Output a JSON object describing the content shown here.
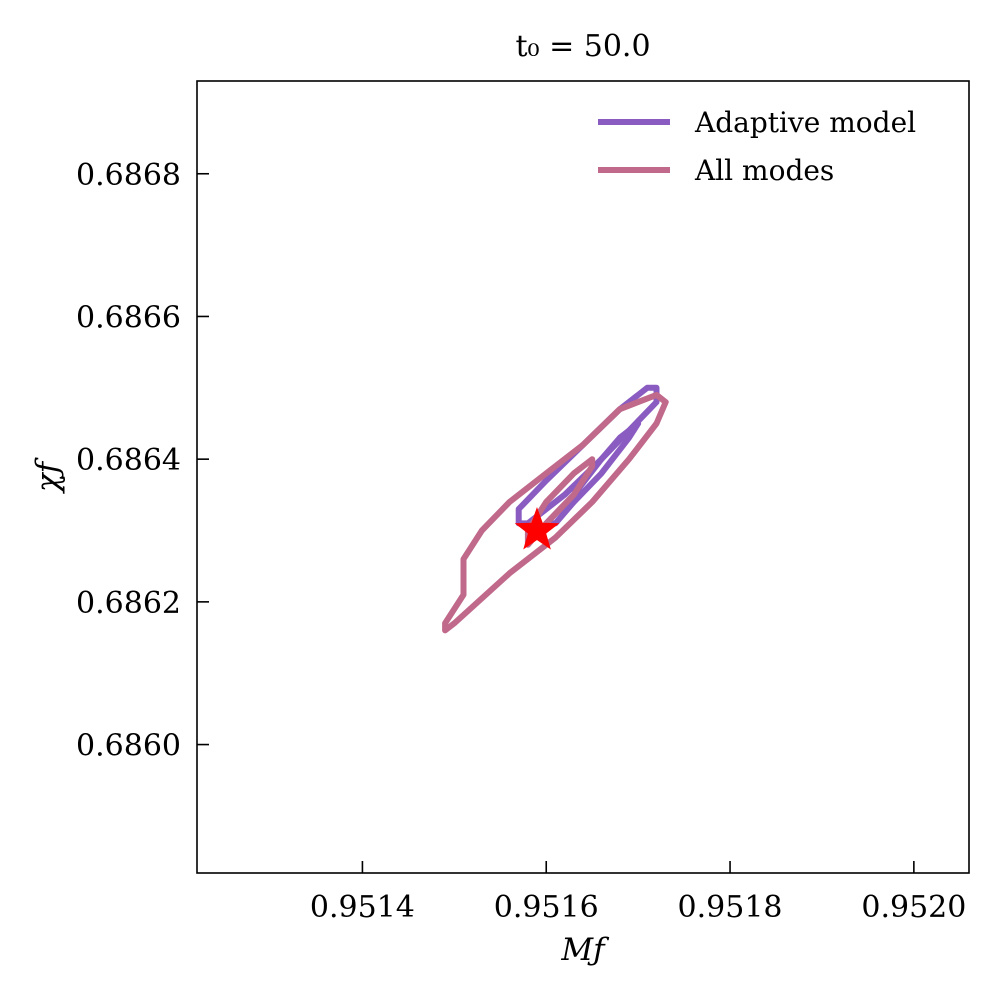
{
  "chart_data": {
    "type": "line",
    "title": "t₀ = 50.0",
    "xlabel": "Mƒ",
    "ylabel": "χƒ",
    "xlim": [
      0.95122,
      0.95206
    ],
    "ylim": [
      0.68582,
      0.68693
    ],
    "x_ticks": [
      0.9514,
      0.9516,
      0.9518,
      0.952
    ],
    "x_tick_labels": [
      "0.9514",
      "0.9516",
      "0.9518",
      "0.9520"
    ],
    "y_ticks": [
      0.686,
      0.6862,
      0.6864,
      0.6866,
      0.6868
    ],
    "y_tick_labels": [
      "0.6860",
      "0.6862",
      "0.6864",
      "0.6866",
      "0.6868"
    ],
    "grid": false,
    "legend_position": "top-right",
    "series": [
      {
        "name": "Adaptive model",
        "color": "#8a5cc2",
        "contours": [
          [
            [
              0.95158,
              0.68631
            ],
            [
              0.95162,
              0.68635
            ],
            [
              0.95166,
              0.6864
            ],
            [
              0.95169,
              0.68644
            ],
            [
              0.95172,
              0.68648
            ],
            [
              0.95172,
              0.6865
            ],
            [
              0.95171,
              0.6865
            ],
            [
              0.95168,
              0.68647
            ],
            [
              0.95164,
              0.68642
            ],
            [
              0.9516,
              0.68637
            ],
            [
              0.95157,
              0.68633
            ],
            [
              0.95157,
              0.68631
            ],
            [
              0.95158,
              0.68631
            ]
          ],
          [
            [
              0.9516,
              0.68631
            ],
            [
              0.95163,
              0.68635
            ],
            [
              0.95166,
              0.6864
            ],
            [
              0.95168,
              0.68643
            ],
            [
              0.9517,
              0.68645
            ],
            [
              0.95169,
              0.68643
            ],
            [
              0.95166,
              0.68638
            ],
            [
              0.95163,
              0.68634
            ],
            [
              0.95161,
              0.68631
            ],
            [
              0.9516,
              0.68631
            ]
          ]
        ]
      },
      {
        "name": "All modes",
        "color": "#c0698a",
        "contours": [
          [
            [
              0.95149,
              0.68616
            ],
            [
              0.9515,
              0.68617
            ],
            [
              0.95156,
              0.68624
            ],
            [
              0.95161,
              0.68629
            ],
            [
              0.95165,
              0.68634
            ],
            [
              0.95169,
              0.6864
            ],
            [
              0.95172,
              0.68645
            ],
            [
              0.95173,
              0.68648
            ],
            [
              0.95172,
              0.68649
            ],
            [
              0.95168,
              0.68647
            ],
            [
              0.95164,
              0.68642
            ],
            [
              0.9516,
              0.68638
            ],
            [
              0.95156,
              0.68634
            ],
            [
              0.95153,
              0.6863
            ],
            [
              0.95151,
              0.68626
            ],
            [
              0.95151,
              0.68621
            ],
            [
              0.9515,
              0.68619
            ],
            [
              0.95149,
              0.68617
            ],
            [
              0.95149,
              0.68616
            ]
          ],
          [
            [
              0.95158,
              0.68628
            ],
            [
              0.9516,
              0.68631
            ],
            [
              0.95163,
              0.68635
            ],
            [
              0.95165,
              0.68639
            ],
            [
              0.95165,
              0.6864
            ],
            [
              0.95163,
              0.68638
            ],
            [
              0.9516,
              0.68634
            ],
            [
              0.95158,
              0.6863
            ],
            [
              0.95158,
              0.68628
            ]
          ]
        ]
      }
    ],
    "marker": {
      "symbol": "star",
      "x": 0.95159,
      "y": 0.6863,
      "color": "#ff0000"
    }
  }
}
